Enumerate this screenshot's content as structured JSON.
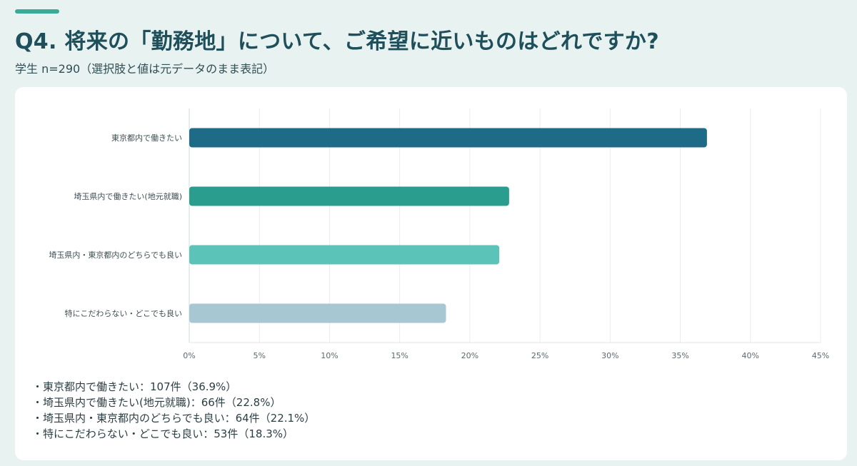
{
  "header": {
    "title": "Q4. 将来の「勤務地」について、ご希望に近いものはどれですか?",
    "subtitle": "学生 n=290（選択肢と値は元データのまま表記）"
  },
  "chart_data": {
    "type": "bar",
    "orientation": "horizontal",
    "categories": [
      "東京都内で働きたい",
      "埼玉県内で働きたい(地元就職)",
      "埼玉県内・東京都内のどちらでも良い",
      "特にこだわらない・どこでも良い"
    ],
    "values": [
      36.9,
      22.8,
      22.1,
      18.3
    ],
    "colors": [
      "#1e6b87",
      "#2a9d8f",
      "#5cc3b8",
      "#a7c7d2"
    ],
    "xlim": [
      0,
      45
    ],
    "x_ticks": [
      "0%",
      "5%",
      "10%",
      "15%",
      "20%",
      "25%",
      "30%",
      "35%",
      "40%",
      "45%"
    ],
    "grid": true,
    "legend": "none"
  },
  "notes": [
    "東京都内で働きたい：107件（36.9%）",
    "埼玉県内で働きたい(地元就職)：66件（22.8%）",
    "埼玉県内・東京都内のどちらでも良い：64件（22.1%）",
    "特にこだわらない・どこでも良い：53件（18.3%）"
  ]
}
